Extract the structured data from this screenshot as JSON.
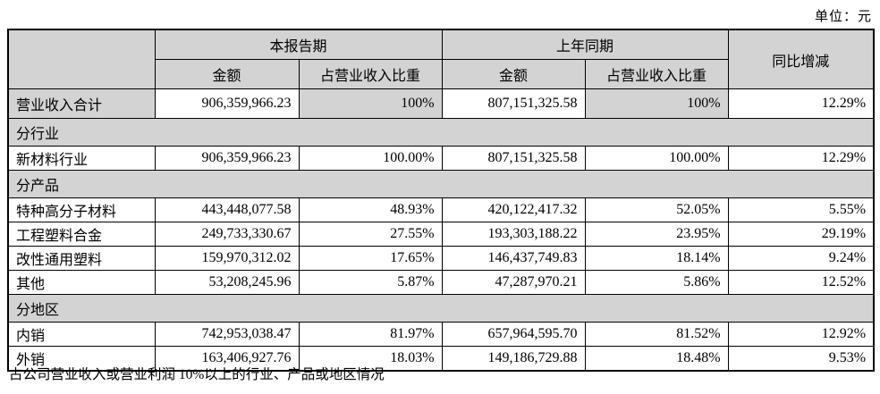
{
  "page": {
    "unit_label": "单位：元"
  },
  "table": {
    "header": {
      "current_period": "本报告期",
      "prior_period": "上年同期",
      "yoy_change": "同比增减",
      "amount": "金额",
      "ratio": "占营业收入比重"
    },
    "rows": [
      {
        "type": "data",
        "shaded": true,
        "tall": true,
        "cells": [
          "营业收入合计",
          "906,359,966.23",
          "100%",
          "807,151,325.58",
          "100%",
          "12.29%"
        ]
      },
      {
        "type": "section",
        "cells": [
          "分行业"
        ]
      },
      {
        "type": "data",
        "cells": [
          "新材料行业",
          "906,359,966.23",
          "100.00%",
          "807,151,325.58",
          "100.00%",
          "12.29%"
        ]
      },
      {
        "type": "section",
        "cells": [
          "分产品"
        ]
      },
      {
        "type": "data",
        "cells": [
          "特种高分子材料",
          "443,448,077.58",
          "48.93%",
          "420,122,417.32",
          "52.05%",
          "5.55%"
        ]
      },
      {
        "type": "data",
        "cells": [
          "工程塑料合金",
          "249,733,330.67",
          "27.55%",
          "193,303,188.22",
          "23.95%",
          "29.19%"
        ]
      },
      {
        "type": "data",
        "cells": [
          "改性通用塑料",
          "159,970,312.02",
          "17.65%",
          "146,437,749.83",
          "18.14%",
          "9.24%"
        ]
      },
      {
        "type": "data",
        "cells": [
          "其他",
          "53,208,245.96",
          "5.87%",
          "47,287,970.21",
          "5.86%",
          "12.52%"
        ]
      },
      {
        "type": "section",
        "cells": [
          "分地区"
        ]
      },
      {
        "type": "data",
        "cells": [
          "内销",
          "742,953,038.47",
          "81.97%",
          "657,964,595.70",
          "81.52%",
          "12.92%"
        ]
      },
      {
        "type": "data",
        "cells": [
          "外销",
          "163,406,927.76",
          "18.03%",
          "149,186,729.88",
          "18.48%",
          "9.53%"
        ]
      }
    ]
  },
  "footer": {
    "note": "占公司营业收入或营业利润 10%以上的行业、产品或地区情况"
  },
  "colors": {
    "header_fill": "#d3d3d3",
    "border": "#000000",
    "text": "#000000",
    "background": "#ffffff"
  }
}
